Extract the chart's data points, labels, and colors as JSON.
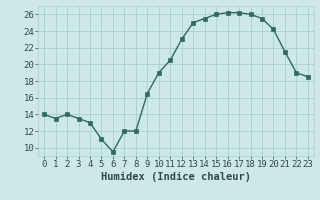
{
  "x": [
    0,
    1,
    2,
    3,
    4,
    5,
    6,
    7,
    8,
    9,
    10,
    11,
    12,
    13,
    14,
    15,
    16,
    17,
    18,
    19,
    20,
    21,
    22,
    23
  ],
  "y": [
    14,
    13.5,
    14,
    13.5,
    13,
    11,
    9.5,
    12,
    12,
    16.5,
    19,
    20.5,
    23,
    25,
    25.5,
    26,
    26.2,
    26.2,
    26,
    25.5,
    24.2,
    21.5,
    19,
    18.5
  ],
  "line_color": "#2e6b5e",
  "marker_color": "#2e6b5e",
  "bg_color": "#cce8e8",
  "grid_color": "#aacfcf",
  "xlabel": "Humidex (Indice chaleur)",
  "xlim": [
    -0.5,
    23.5
  ],
  "ylim": [
    9,
    27
  ],
  "yticks": [
    10,
    12,
    14,
    16,
    18,
    20,
    22,
    24,
    26
  ],
  "xticks": [
    0,
    1,
    2,
    3,
    4,
    5,
    6,
    7,
    8,
    9,
    10,
    11,
    12,
    13,
    14,
    15,
    16,
    17,
    18,
    19,
    20,
    21,
    22,
    23
  ],
  "tick_label_fontsize": 6.5,
  "xlabel_fontsize": 7.5
}
